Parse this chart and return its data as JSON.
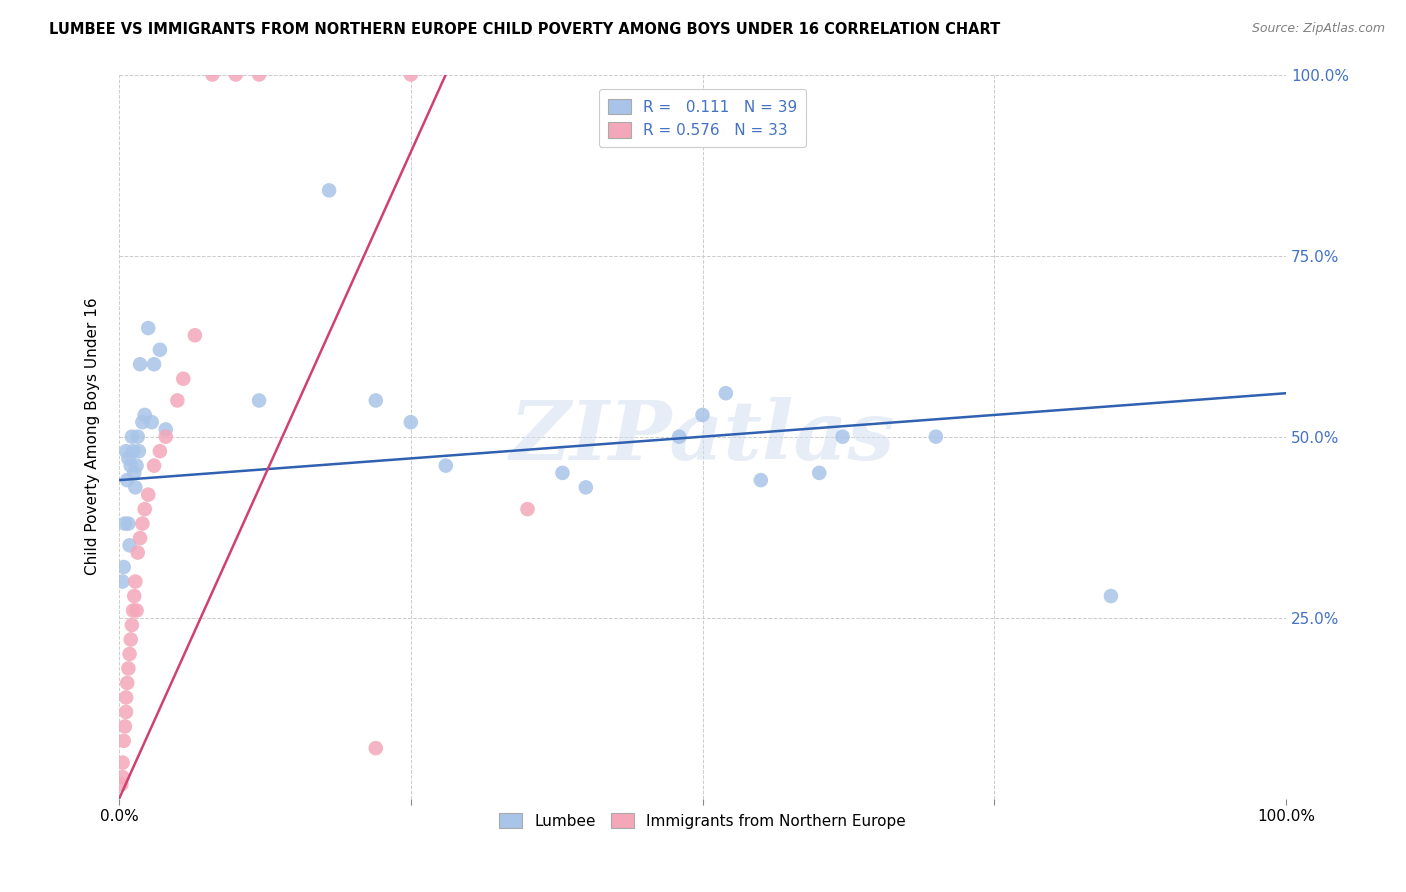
{
  "title": "LUMBEE VS IMMIGRANTS FROM NORTHERN EUROPE CHILD POVERTY AMONG BOYS UNDER 16 CORRELATION CHART",
  "source": "Source: ZipAtlas.com",
  "ylabel": "Child Poverty Among Boys Under 16",
  "xlim": [
    0,
    1.0
  ],
  "ylim": [
    0,
    1.0
  ],
  "xticks": [
    0,
    0.25,
    0.5,
    0.75,
    1.0
  ],
  "xticklabels": [
    "0.0%",
    "",
    "",
    "",
    "100.0%"
  ],
  "yticks": [
    0,
    0.25,
    0.5,
    0.75,
    1.0
  ],
  "yticklabels": [
    "",
    "25.0%",
    "50.0%",
    "75.0%",
    "100.0%"
  ],
  "lumbee_R": 0.111,
  "lumbee_N": 39,
  "immigrants_R": 0.576,
  "immigrants_N": 33,
  "lumbee_color": "#a8c4e8",
  "immigrants_color": "#f4a7b9",
  "lumbee_line_color": "#3060b0",
  "immigrants_line_color": "#d04070",
  "legend_lumbee": "Lumbee",
  "legend_immigrants": "Immigrants from Northern Europe",
  "watermark": "ZIPatlas",
  "lumbee_x": [
    0.003,
    0.004,
    0.005,
    0.006,
    0.007,
    0.008,
    0.008,
    0.009,
    0.01,
    0.011,
    0.012,
    0.013,
    0.014,
    0.015,
    0.016,
    0.017,
    0.018,
    0.02,
    0.022,
    0.025,
    0.028,
    0.03,
    0.035,
    0.04,
    0.12,
    0.18,
    0.22,
    0.25,
    0.28,
    0.38,
    0.4,
    0.48,
    0.5,
    0.52,
    0.55,
    0.6,
    0.62,
    0.7,
    0.85
  ],
  "lumbee_y": [
    0.3,
    0.32,
    0.38,
    0.48,
    0.44,
    0.38,
    0.47,
    0.35,
    0.46,
    0.5,
    0.48,
    0.45,
    0.43,
    0.46,
    0.5,
    0.48,
    0.6,
    0.52,
    0.53,
    0.65,
    0.52,
    0.6,
    0.62,
    0.51,
    0.55,
    0.84,
    0.55,
    0.52,
    0.46,
    0.45,
    0.43,
    0.5,
    0.53,
    0.56,
    0.44,
    0.45,
    0.5,
    0.5,
    0.28
  ],
  "immigrants_x": [
    0.002,
    0.003,
    0.003,
    0.004,
    0.005,
    0.006,
    0.006,
    0.007,
    0.008,
    0.009,
    0.01,
    0.011,
    0.012,
    0.013,
    0.014,
    0.015,
    0.016,
    0.018,
    0.02,
    0.022,
    0.025,
    0.03,
    0.035,
    0.04,
    0.05,
    0.055,
    0.065,
    0.08,
    0.1,
    0.12,
    0.22,
    0.25,
    0.35
  ],
  "immigrants_y": [
    0.02,
    0.03,
    0.05,
    0.08,
    0.1,
    0.12,
    0.14,
    0.16,
    0.18,
    0.2,
    0.22,
    0.24,
    0.26,
    0.28,
    0.3,
    0.26,
    0.34,
    0.36,
    0.38,
    0.4,
    0.42,
    0.46,
    0.48,
    0.5,
    0.55,
    0.58,
    0.64,
    1.0,
    1.0,
    1.0,
    0.07,
    1.0,
    0.4
  ],
  "lumbee_trend_x": [
    0.0,
    1.0
  ],
  "lumbee_trend_y": [
    0.44,
    0.56
  ],
  "immigrants_trend_x": [
    0.0,
    0.28
  ],
  "immigrants_trend_y": [
    0.0,
    1.0
  ]
}
